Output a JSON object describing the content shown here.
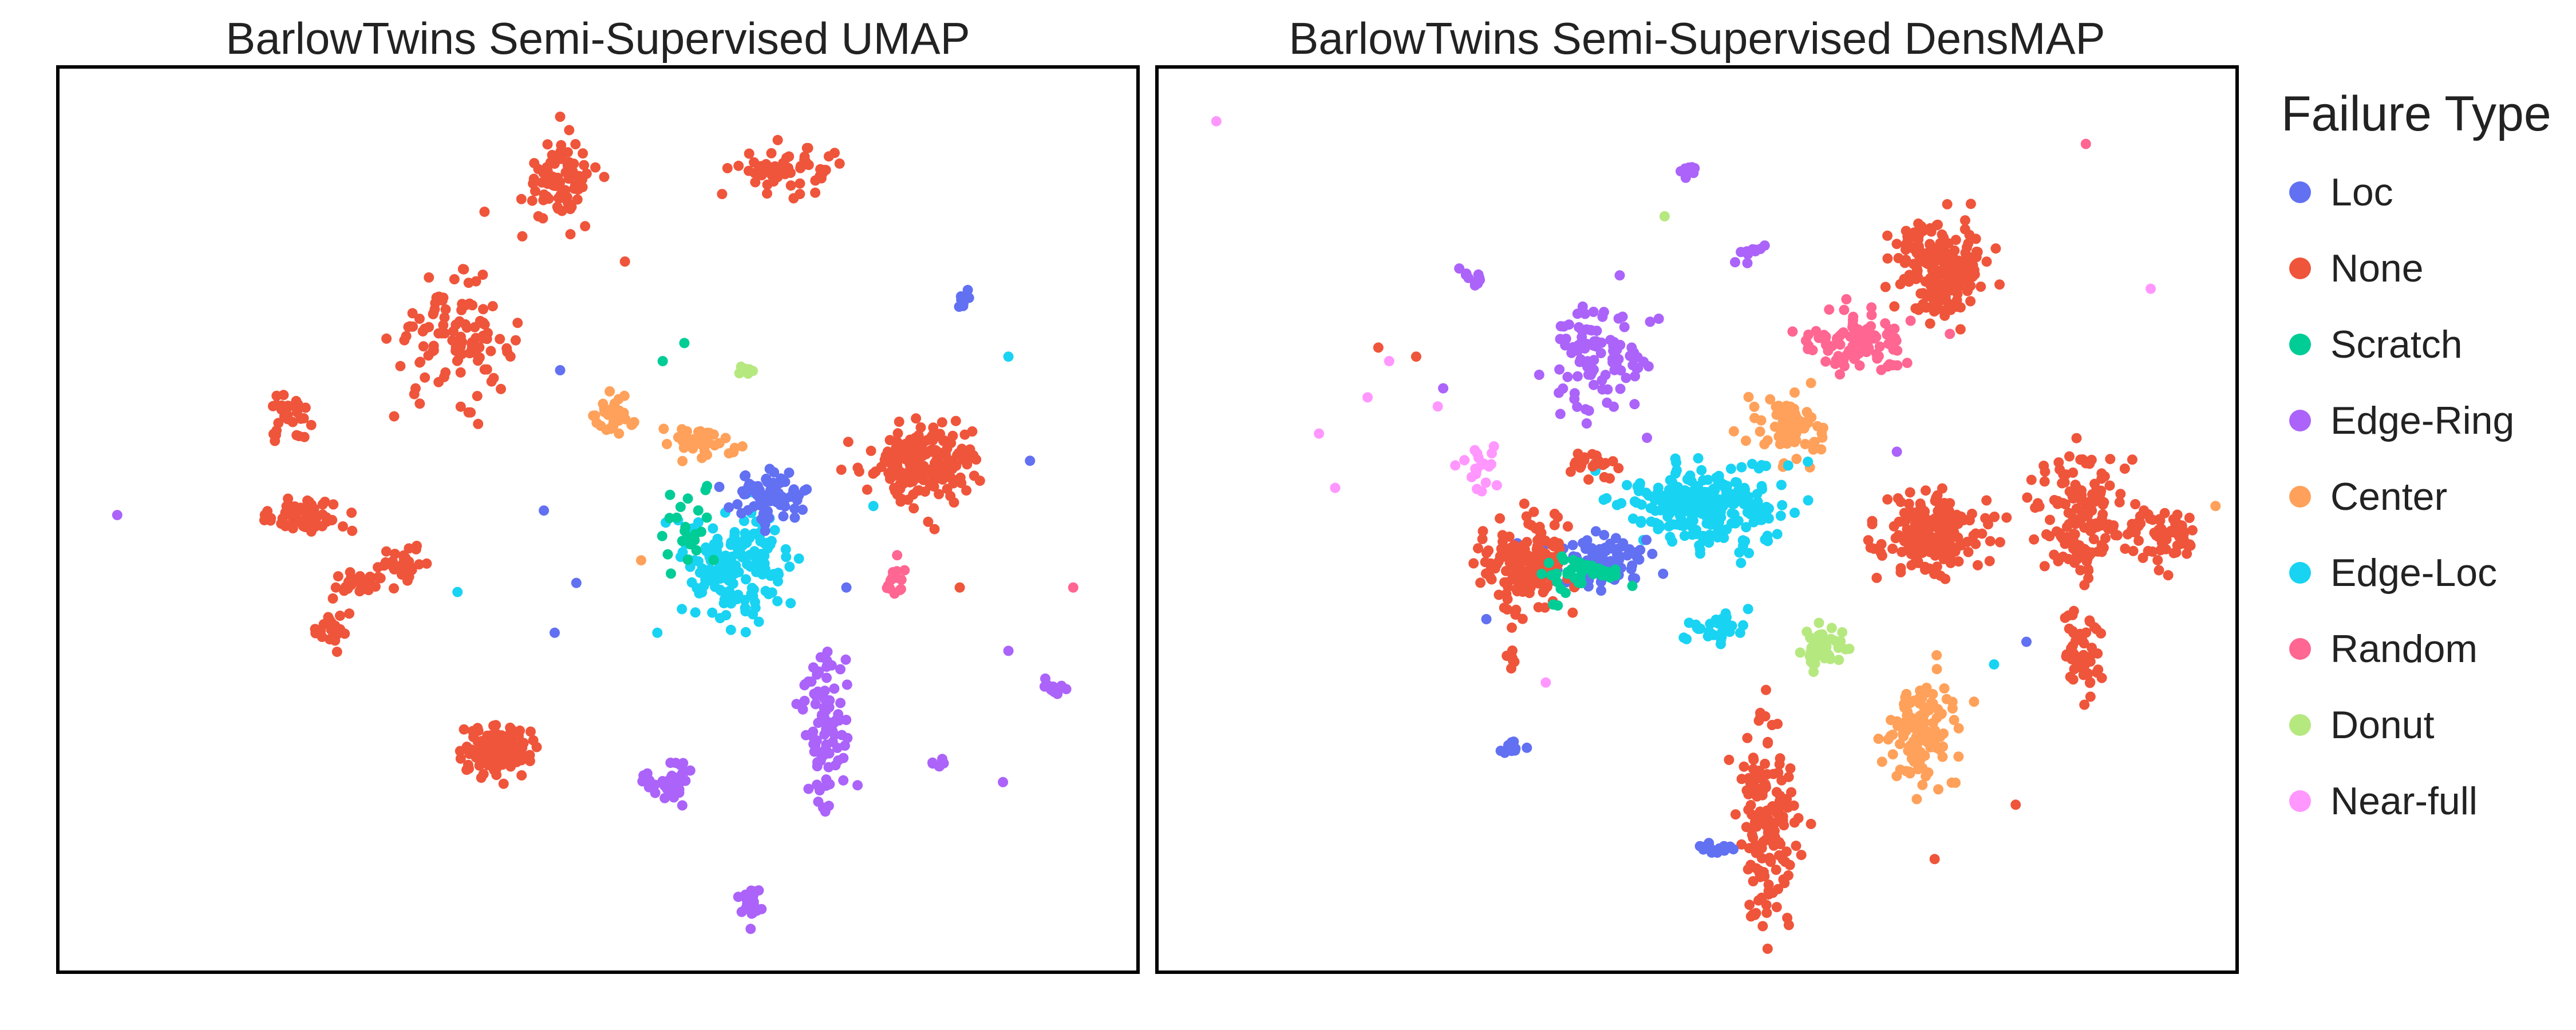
{
  "legend": {
    "title": "Failure Type",
    "items": [
      {
        "label": "Loc",
        "color": "#6270f2"
      },
      {
        "label": "None",
        "color": "#ef553b"
      },
      {
        "label": "Scratch",
        "color": "#00cc96"
      },
      {
        "label": "Edge-Ring",
        "color": "#ab63fa"
      },
      {
        "label": "Center",
        "color": "#ffa15a"
      },
      {
        "label": "Edge-Loc",
        "color": "#19d3f3"
      },
      {
        "label": "Random",
        "color": "#ff6692"
      },
      {
        "label": "Donut",
        "color": "#b6e880"
      },
      {
        "label": "Near-full",
        "color": "#ff97ff"
      }
    ]
  },
  "chart_data": [
    {
      "type": "scatter",
      "title": "BarlowTwins Semi-Supervised UMAP",
      "xlabel": "",
      "ylabel": "",
      "grid": false,
      "legend_position": "right",
      "xlim": [
        0,
        100
      ],
      "ylim": [
        0,
        100
      ],
      "clusters": [
        {
          "series": "None",
          "center": [
            46.5,
            87.5
          ],
          "spread": [
            3.5,
            4.5
          ],
          "n": 80
        },
        {
          "series": "None",
          "center": [
            68,
            88.5
          ],
          "spread": [
            5,
            2.5
          ],
          "n": 60
        },
        {
          "series": "None",
          "center": [
            36.5,
            70
          ],
          "spread": [
            5.5,
            6
          ],
          "n": 110
        },
        {
          "series": "None",
          "center": [
            21.5,
            61
          ],
          "spread": [
            1.8,
            2.5
          ],
          "n": 30
        },
        {
          "series": "None",
          "center": [
            23,
            50.5
          ],
          "spread": [
            4.5,
            1.8
          ],
          "n": 70
        },
        {
          "series": "None",
          "center": [
            32,
            45
          ],
          "spread": [
            2,
            2
          ],
          "n": 30
        },
        {
          "series": "None",
          "center": [
            27.5,
            43
          ],
          "spread": [
            2.2,
            1.5
          ],
          "n": 25
        },
        {
          "series": "None",
          "center": [
            25.5,
            38
          ],
          "spread": [
            1.5,
            2
          ],
          "n": 20
        },
        {
          "series": "None",
          "center": [
            40.5,
            24.5
          ],
          "spread": [
            3,
            2.5
          ],
          "n": 150
        },
        {
          "series": "None",
          "center": [
            80.5,
            56.5
          ],
          "spread": [
            5,
            4.5
          ],
          "n": 200
        },
        {
          "series": "Edge-Loc",
          "center": [
            63,
            45
          ],
          "spread": [
            4.5,
            6
          ],
          "n": 160
        },
        {
          "series": "Loc",
          "center": [
            66,
            52.5
          ],
          "spread": [
            3.5,
            2.5
          ],
          "n": 70
        },
        {
          "series": "Scratch",
          "center": [
            58.5,
            48.5
          ],
          "spread": [
            3,
            4
          ],
          "n": 25
        },
        {
          "series": "Center",
          "center": [
            51.5,
            61.5
          ],
          "spread": [
            1.8,
            2.5
          ],
          "n": 35
        },
        {
          "series": "Center",
          "center": [
            59.5,
            58.5
          ],
          "spread": [
            3,
            1.8
          ],
          "n": 35
        },
        {
          "series": "Edge-Ring",
          "center": [
            71,
            27.5
          ],
          "spread": [
            2.5,
            9
          ],
          "n": 90
        },
        {
          "series": "Edge-Ring",
          "center": [
            56.5,
            21
          ],
          "spread": [
            2.5,
            2.5
          ],
          "n": 40
        },
        {
          "series": "Edge-Ring",
          "center": [
            64,
            8
          ],
          "spread": [
            1,
            2
          ],
          "n": 25
        },
        {
          "series": "Random",
          "center": [
            77.5,
            43.5
          ],
          "spread": [
            1,
            2
          ],
          "n": 15
        },
        {
          "series": "Donut",
          "center": [
            63.5,
            66.5
          ],
          "spread": [
            1.2,
            0.6
          ],
          "n": 10
        },
        {
          "series": "Loc",
          "center": [
            84,
            74.5
          ],
          "spread": [
            0.8,
            1
          ],
          "n": 8
        },
        {
          "series": "Edge-Ring",
          "center": [
            92.5,
            31.5
          ],
          "spread": [
            1.5,
            0.8
          ],
          "n": 10
        },
        {
          "series": "Edge-Ring",
          "center": [
            81.5,
            23
          ],
          "spread": [
            1,
            0.6
          ],
          "n": 6
        }
      ],
      "points": [
        {
          "series": "Edge-Ring",
          "x": 5.5,
          "y": 50.5
        },
        {
          "series": "None",
          "x": 46.5,
          "y": 94.5
        },
        {
          "series": "None",
          "x": 39.5,
          "y": 84
        },
        {
          "series": "None",
          "x": 52.5,
          "y": 78.5
        },
        {
          "series": "Random",
          "x": 94,
          "y": 42.5
        },
        {
          "series": "Edge-Loc",
          "x": 37,
          "y": 42
        },
        {
          "series": "Loc",
          "x": 46,
          "y": 37.5
        },
        {
          "series": "Loc",
          "x": 45,
          "y": 51
        },
        {
          "series": "Loc",
          "x": 48,
          "y": 43
        },
        {
          "series": "Loc",
          "x": 46.5,
          "y": 66.5
        },
        {
          "series": "Edge-Loc",
          "x": 55.5,
          "y": 37.5
        },
        {
          "series": "Scratch",
          "x": 56,
          "y": 67.5
        },
        {
          "series": "Scratch",
          "x": 58,
          "y": 69.5
        },
        {
          "series": "Center",
          "x": 54,
          "y": 45.5
        },
        {
          "series": "Loc",
          "x": 73,
          "y": 42.5
        },
        {
          "series": "Edge-Loc",
          "x": 75.5,
          "y": 51.5
        },
        {
          "series": "Edge-Loc",
          "x": 88,
          "y": 68
        },
        {
          "series": "Loc",
          "x": 90,
          "y": 56.5
        },
        {
          "series": "Edge-Ring",
          "x": 88,
          "y": 35.5
        },
        {
          "series": "Edge-Ring",
          "x": 87.5,
          "y": 21
        },
        {
          "series": "None",
          "x": 83.5,
          "y": 42.5
        }
      ]
    },
    {
      "type": "scatter",
      "title": "BarlowTwins Semi-Supervised DensMAP",
      "xlabel": "",
      "ylabel": "",
      "grid": false,
      "legend_position": "right",
      "xlim": [
        0,
        100
      ],
      "ylim": [
        0,
        100
      ],
      "clusters": [
        {
          "series": "None",
          "center": [
            72.5,
            78
          ],
          "spread": [
            4,
            5.5
          ],
          "n": 220
        },
        {
          "series": "Random",
          "center": [
            65,
            69.5
          ],
          "spread": [
            5,
            3.5
          ],
          "n": 90
        },
        {
          "series": "Edge-Ring",
          "center": [
            41,
            67.5
          ],
          "spread": [
            4,
            6
          ],
          "n": 100
        },
        {
          "series": "Edge-Ring",
          "center": [
            55,
            79.5
          ],
          "spread": [
            1.5,
            1
          ],
          "n": 12
        },
        {
          "series": "Edge-Ring",
          "center": [
            49,
            88.5
          ],
          "spread": [
            0.8,
            1
          ],
          "n": 10
        },
        {
          "series": "Edge-Ring",
          "center": [
            29.5,
            76.5
          ],
          "spread": [
            1.5,
            1
          ],
          "n": 10
        },
        {
          "series": "Near-full",
          "center": [
            30,
            56
          ],
          "spread": [
            2.5,
            2
          ],
          "n": 20
        },
        {
          "series": "Center",
          "center": [
            58.5,
            60
          ],
          "spread": [
            3,
            4
          ],
          "n": 80
        },
        {
          "series": "Edge-Loc",
          "center": [
            50.5,
            51.5
          ],
          "spread": [
            7,
            4.5
          ],
          "n": 260
        },
        {
          "series": "Loc",
          "center": [
            41,
            45.5
          ],
          "spread": [
            5,
            3
          ],
          "n": 90
        },
        {
          "series": "None",
          "center": [
            34.5,
            45
          ],
          "spread": [
            4,
            4.5
          ],
          "n": 170
        },
        {
          "series": "Scratch",
          "center": [
            39,
            44
          ],
          "spread": [
            3.5,
            2.5
          ],
          "n": 40
        },
        {
          "series": "None",
          "center": [
            40,
            56
          ],
          "spread": [
            2.5,
            1.2
          ],
          "n": 25
        },
        {
          "series": "None",
          "center": [
            72,
            48.5
          ],
          "spread": [
            5,
            4.5
          ],
          "n": 180
        },
        {
          "series": "None",
          "center": [
            85.5,
            50
          ],
          "spread": [
            4,
            7
          ],
          "n": 150
        },
        {
          "series": "None",
          "center": [
            93,
            48.5
          ],
          "spread": [
            3,
            3
          ],
          "n": 70
        },
        {
          "series": "None",
          "center": [
            85.5,
            35
          ],
          "spread": [
            2,
            5
          ],
          "n": 50
        },
        {
          "series": "None",
          "center": [
            56.5,
            17
          ],
          "spread": [
            2.5,
            11
          ],
          "n": 160
        },
        {
          "series": "Loc",
          "center": [
            52,
            13.5
          ],
          "spread": [
            3,
            0.6
          ],
          "n": 15
        },
        {
          "series": "Center",
          "center": [
            70.5,
            26.5
          ],
          "spread": [
            3,
            6
          ],
          "n": 120
        },
        {
          "series": "Donut",
          "center": [
            61.5,
            36
          ],
          "spread": [
            2,
            2.5
          ],
          "n": 45
        },
        {
          "series": "Edge-Loc",
          "center": [
            51.5,
            38
          ],
          "spread": [
            3,
            1.5
          ],
          "n": 30
        },
        {
          "series": "Loc",
          "center": [
            33,
            25
          ],
          "spread": [
            1.2,
            1
          ],
          "n": 10
        },
        {
          "series": "None",
          "center": [
            33,
            34.5
          ],
          "spread": [
            0.6,
            1.5
          ],
          "n": 8
        }
      ],
      "points": [
        {
          "series": "Near-full",
          "x": 5.5,
          "y": 94
        },
        {
          "series": "Random",
          "x": 86,
          "y": 91.5
        },
        {
          "series": "Near-full",
          "x": 92,
          "y": 75.5
        },
        {
          "series": "Donut",
          "x": 47,
          "y": 83.5
        },
        {
          "series": "None",
          "x": 20.5,
          "y": 69
        },
        {
          "series": "None",
          "x": 24,
          "y": 68
        },
        {
          "series": "Near-full",
          "x": 21.5,
          "y": 67.5
        },
        {
          "series": "Near-full",
          "x": 19.5,
          "y": 63.5
        },
        {
          "series": "Near-full",
          "x": 26,
          "y": 62.5
        },
        {
          "series": "Near-full",
          "x": 15,
          "y": 59.5
        },
        {
          "series": "Near-full",
          "x": 16.5,
          "y": 53.5
        },
        {
          "series": "Edge-Ring",
          "x": 26.5,
          "y": 64.5
        },
        {
          "series": "Center",
          "x": 98,
          "y": 51.5
        },
        {
          "series": "None",
          "x": 79.5,
          "y": 18.5
        },
        {
          "series": "None",
          "x": 72,
          "y": 12.5
        },
        {
          "series": "Loc",
          "x": 80.5,
          "y": 36.5
        },
        {
          "series": "Edge-Loc",
          "x": 77.5,
          "y": 34
        },
        {
          "series": "Edge-Ring",
          "x": 68.5,
          "y": 57.5
        },
        {
          "series": "Near-full",
          "x": 36,
          "y": 32
        },
        {
          "series": "Loc",
          "x": 30.5,
          "y": 39
        }
      ]
    }
  ]
}
